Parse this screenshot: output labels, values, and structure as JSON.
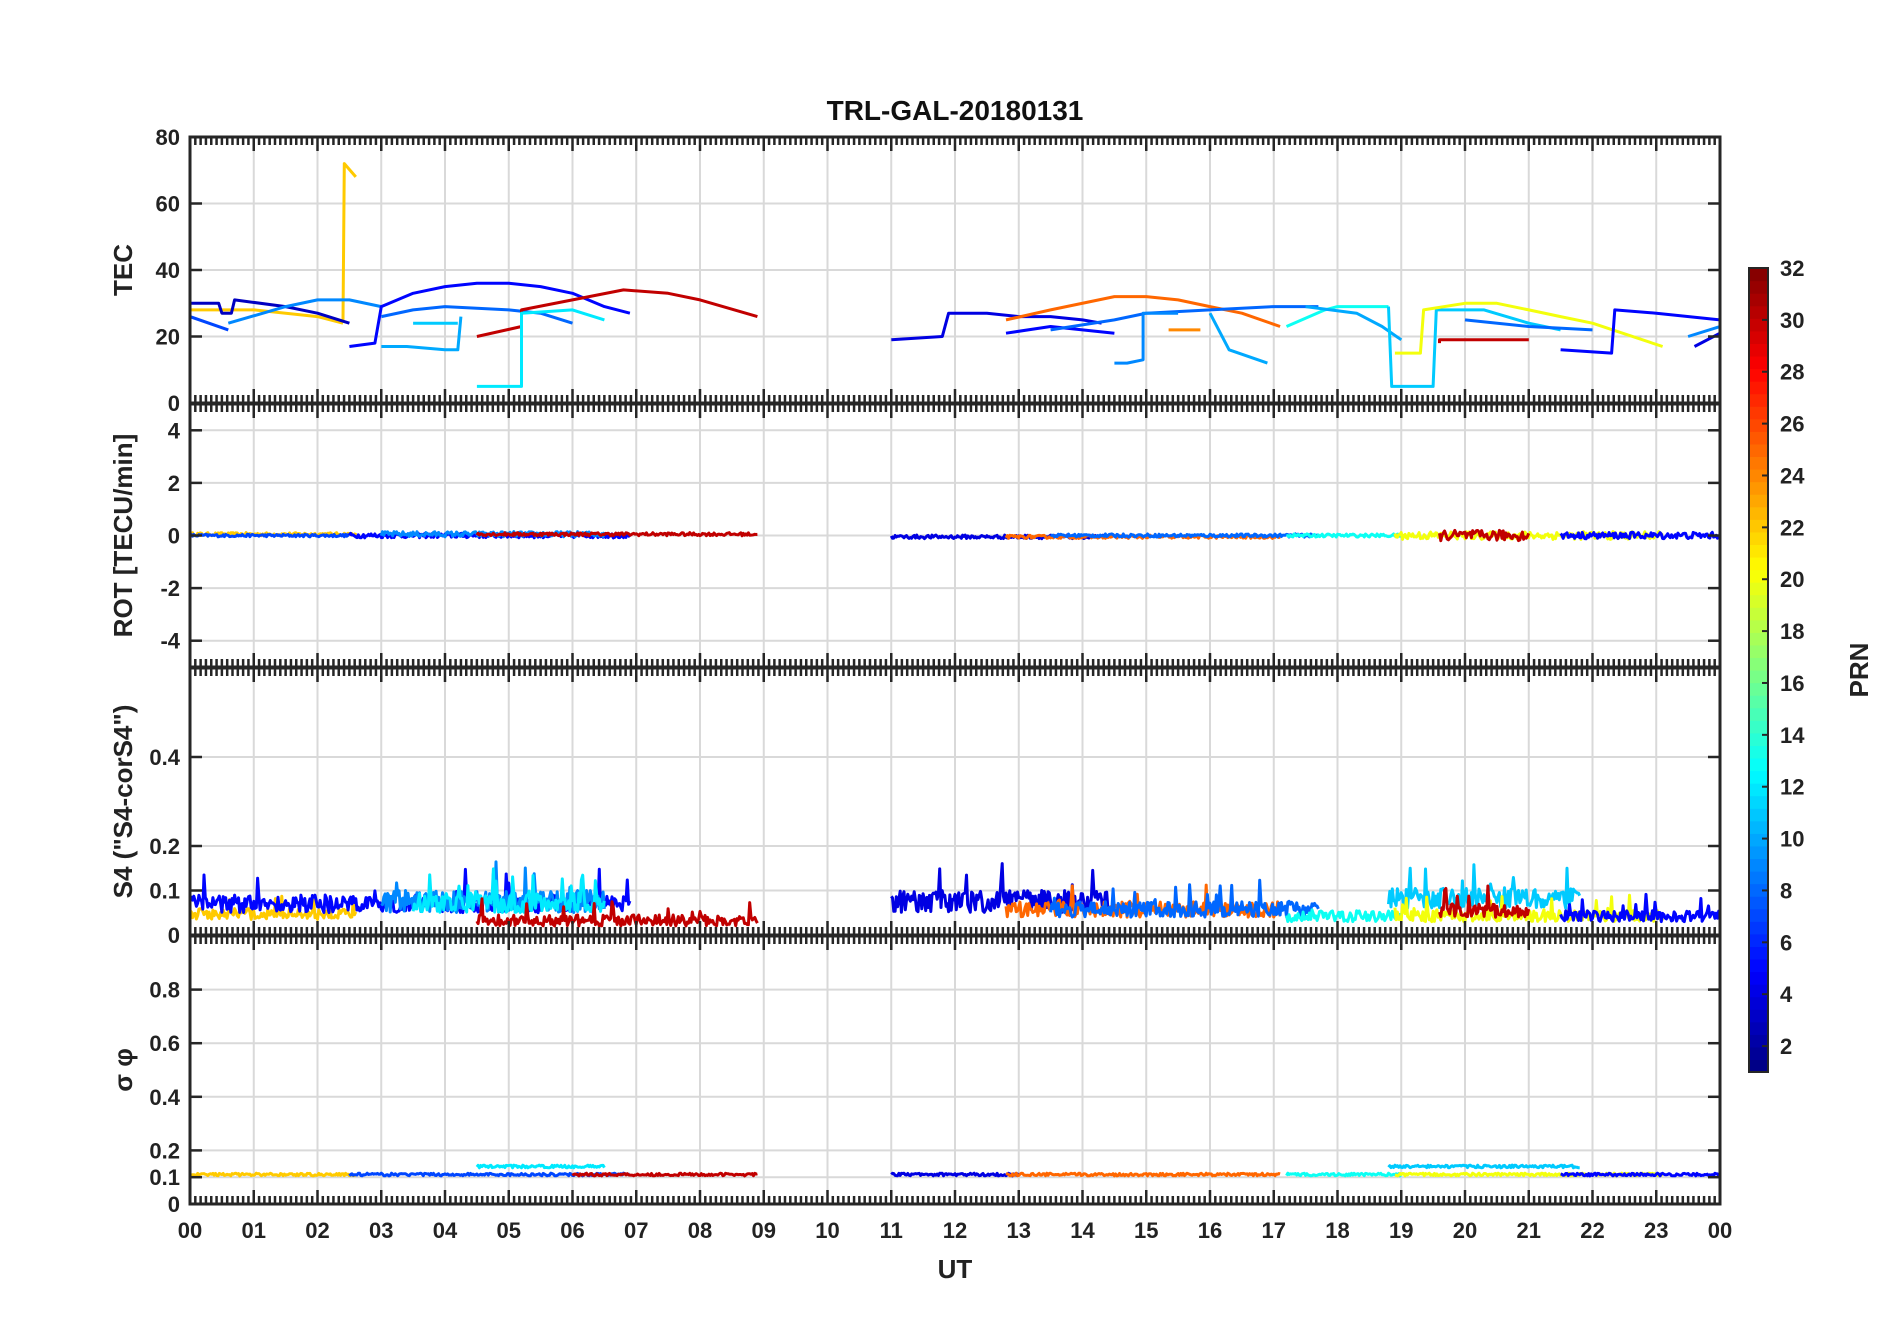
{
  "chart_data": [
    {
      "type": "line",
      "title": "TRL-GAL-20180131",
      "ylabel": "TEC",
      "ylim": [
        0,
        80
      ],
      "yticks": [
        0,
        20,
        40,
        60,
        80
      ],
      "ytick_labels": [
        "0",
        "20",
        "40",
        "60",
        "80"
      ],
      "series": [
        {
          "prn": 22,
          "points": [
            [
              0.0,
              28
            ],
            [
              1.0,
              28
            ],
            [
              2.0,
              26
            ],
            [
              2.4,
              24
            ]
          ]
        },
        {
          "prn": 22,
          "points": [
            [
              2.4,
              25
            ],
            [
              2.42,
              72
            ],
            [
              2.6,
              68
            ]
          ]
        },
        {
          "prn": 3,
          "points": [
            [
              0.0,
              30
            ],
            [
              0.45,
              30
            ],
            [
              0.5,
              27
            ],
            [
              0.65,
              27
            ],
            [
              0.7,
              31
            ],
            [
              1.5,
              29
            ],
            [
              2.0,
              27
            ],
            [
              2.5,
              24
            ]
          ]
        },
        {
          "prn": 7,
          "points": [
            [
              0.0,
              26
            ],
            [
              0.6,
              22
            ]
          ]
        },
        {
          "prn": 9,
          "points": [
            [
              0.6,
              24
            ],
            [
              1.5,
              29
            ],
            [
              2.0,
              31
            ],
            [
              2.5,
              31
            ],
            [
              3.0,
              29
            ]
          ]
        },
        {
          "prn": 5,
          "points": [
            [
              2.5,
              17
            ],
            [
              2.9,
              18
            ],
            [
              3.0,
              29
            ],
            [
              3.5,
              33
            ],
            [
              4.0,
              35
            ],
            [
              4.5,
              36
            ],
            [
              5.0,
              36
            ],
            [
              5.5,
              35
            ],
            [
              6.0,
              33
            ],
            [
              6.5,
              29
            ],
            [
              6.9,
              27
            ]
          ]
        },
        {
          "prn": 8,
          "points": [
            [
              3.0,
              26
            ],
            [
              3.5,
              28
            ],
            [
              4.0,
              29
            ],
            [
              5.0,
              28
            ],
            [
              5.5,
              27
            ],
            [
              6.0,
              24
            ]
          ]
        },
        {
          "prn": 10,
          "points": [
            [
              3.0,
              17
            ],
            [
              3.4,
              17
            ],
            [
              4.0,
              16
            ],
            [
              4.2,
              16
            ],
            [
              4.25,
              26
            ]
          ]
        },
        {
          "prn": 11,
          "points": [
            [
              3.5,
              24
            ],
            [
              4.2,
              24
            ]
          ]
        },
        {
          "prn": 30,
          "points": [
            [
              4.5,
              20
            ],
            [
              5.2,
              23
            ],
            [
              5.2,
              28
            ],
            [
              6.0,
              31
            ],
            [
              6.8,
              34
            ],
            [
              7.5,
              33
            ],
            [
              8.0,
              31
            ],
            [
              8.9,
              26
            ]
          ]
        },
        {
          "prn": 12,
          "points": [
            [
              4.5,
              5
            ],
            [
              5.2,
              5
            ],
            [
              5.2,
              27
            ],
            [
              6.0,
              28
            ],
            [
              6.5,
              25
            ]
          ]
        },
        {
          "prn": 4,
          "points": [
            [
              11.0,
              19
            ],
            [
              11.8,
              20
            ],
            [
              11.9,
              27
            ],
            [
              12.5,
              27
            ],
            [
              13.0,
              26
            ],
            [
              13.5,
              26
            ],
            [
              14.0,
              25
            ],
            [
              14.3,
              24
            ]
          ]
        },
        {
          "prn": 5,
          "points": [
            [
              12.8,
              21
            ],
            [
              13.5,
              23
            ],
            [
              14.0,
              22
            ],
            [
              14.5,
              21
            ]
          ]
        },
        {
          "prn": 25,
          "points": [
            [
              12.8,
              25
            ],
            [
              13.5,
              28
            ],
            [
              14.5,
              32
            ],
            [
              15.0,
              32
            ],
            [
              15.5,
              31
            ],
            [
              16.0,
              29
            ],
            [
              16.5,
              27
            ],
            [
              17.1,
              23
            ]
          ]
        },
        {
          "prn": 8,
          "points": [
            [
              13.5,
              22
            ],
            [
              14.5,
              25
            ],
            [
              15.0,
              27
            ],
            [
              16.0,
              28
            ],
            [
              17.0,
              29
            ],
            [
              17.7,
              29
            ]
          ]
        },
        {
          "prn": 9,
          "points": [
            [
              14.5,
              12
            ],
            [
              14.7,
              12
            ],
            [
              14.95,
              13
            ],
            [
              14.95,
              27
            ],
            [
              15.5,
              27
            ]
          ]
        },
        {
          "prn": 24,
          "points": [
            [
              15.35,
              22
            ],
            [
              15.85,
              22
            ]
          ]
        },
        {
          "prn": 10,
          "points": [
            [
              16.0,
              27
            ],
            [
              16.3,
              16
            ],
            [
              16.9,
              12
            ]
          ]
        },
        {
          "prn": 13,
          "points": [
            [
              17.2,
              23
            ],
            [
              17.8,
              28
            ],
            [
              18.0,
              29
            ],
            [
              18.8,
              29
            ]
          ]
        },
        {
          "prn": 10,
          "points": [
            [
              17.5,
              29
            ],
            [
              18.3,
              27
            ],
            [
              18.7,
              23
            ],
            [
              19.0,
              19
            ]
          ]
        },
        {
          "prn": 11,
          "points": [
            [
              18.8,
              29
            ],
            [
              18.85,
              5
            ],
            [
              19.5,
              5
            ],
            [
              19.55,
              28
            ],
            [
              20.3,
              28
            ],
            [
              21.0,
              24
            ],
            [
              21.5,
              22
            ]
          ]
        },
        {
          "prn": 20,
          "points": [
            [
              18.9,
              15
            ],
            [
              19.3,
              15
            ],
            [
              19.35,
              28
            ],
            [
              20.0,
              30
            ],
            [
              20.5,
              30
            ],
            [
              21.0,
              28
            ],
            [
              21.5,
              26
            ],
            [
              22.0,
              24
            ],
            [
              23.1,
              17
            ]
          ]
        },
        {
          "prn": 30,
          "points": [
            [
              19.6,
              18
            ],
            [
              19.6,
              19
            ],
            [
              20.0,
              19
            ],
            [
              21.0,
              19
            ]
          ]
        },
        {
          "prn": 5,
          "points": [
            [
              21.5,
              16
            ],
            [
              22.3,
              15
            ],
            [
              22.35,
              28
            ],
            [
              23.0,
              27
            ],
            [
              24.0,
              25
            ]
          ]
        },
        {
          "prn": 8,
          "points": [
            [
              20.0,
              25
            ],
            [
              21.0,
              23
            ],
            [
              22.0,
              22
            ]
          ]
        },
        {
          "prn": 9,
          "points": [
            [
              23.5,
              20
            ],
            [
              24.0,
              23
            ]
          ]
        },
        {
          "prn": 4,
          "points": [
            [
              23.6,
              17
            ],
            [
              24.0,
              21
            ]
          ]
        }
      ]
    },
    {
      "type": "line",
      "ylabel": "ROT [TECU/min]",
      "ylim": [
        -5,
        5
      ],
      "yticks": [
        -4,
        -2,
        0,
        2,
        4
      ],
      "ytick_labels": [
        "-4",
        "-2",
        "0",
        "2",
        "4"
      ],
      "series": [
        {
          "prn": 22,
          "range": [
            0.0,
            2.6
          ],
          "level": 0.05,
          "amp": 0.12
        },
        {
          "prn": 7,
          "range": [
            0.0,
            2.5
          ],
          "level": 0.0,
          "amp": 0.1
        },
        {
          "prn": 5,
          "range": [
            2.5,
            6.9
          ],
          "level": 0.0,
          "amp": 0.18
        },
        {
          "prn": 9,
          "range": [
            3.0,
            6.5
          ],
          "level": 0.05,
          "amp": 0.2
        },
        {
          "prn": 30,
          "range": [
            4.5,
            8.9
          ],
          "level": 0.05,
          "amp": 0.12
        },
        {
          "prn": 4,
          "range": [
            11.0,
            14.4
          ],
          "level": -0.05,
          "amp": 0.14
        },
        {
          "prn": 25,
          "range": [
            12.8,
            17.1
          ],
          "level": -0.05,
          "amp": 0.12
        },
        {
          "prn": 8,
          "range": [
            13.5,
            17.7
          ],
          "level": 0.0,
          "amp": 0.12
        },
        {
          "prn": 13,
          "range": [
            17.2,
            19.0
          ],
          "level": 0.0,
          "amp": 0.12
        },
        {
          "prn": 20,
          "range": [
            18.9,
            23.1
          ],
          "level": 0.0,
          "amp": 0.3
        },
        {
          "prn": 30,
          "range": [
            19.6,
            21.0
          ],
          "level": 0.0,
          "amp": 0.4
        },
        {
          "prn": 5,
          "range": [
            21.5,
            24.0
          ],
          "level": 0.0,
          "amp": 0.25
        }
      ]
    },
    {
      "type": "line",
      "ylabel": "S4 (\"S4-corS4\")",
      "ylim": [
        0,
        0.6
      ],
      "yticks": [
        0,
        0.1,
        0.2,
        0.4
      ],
      "ytick_labels": [
        "0",
        "0.1",
        "0.2",
        "0.4"
      ],
      "series": [
        {
          "prn": 22,
          "range": [
            0.0,
            2.6
          ],
          "level": 0.035,
          "amp": 0.05
        },
        {
          "prn": 5,
          "range": [
            0.0,
            6.9
          ],
          "level": 0.05,
          "amp": 0.08
        },
        {
          "prn": 9,
          "range": [
            3.0,
            6.5
          ],
          "level": 0.05,
          "amp": 0.1
        },
        {
          "prn": 12,
          "range": [
            3.5,
            6.5
          ],
          "level": 0.05,
          "amp": 0.09
        },
        {
          "prn": 30,
          "range": [
            4.5,
            8.9
          ],
          "level": 0.02,
          "amp": 0.05
        },
        {
          "prn": 4,
          "range": [
            11.0,
            14.4
          ],
          "level": 0.05,
          "amp": 0.1
        },
        {
          "prn": 25,
          "range": [
            12.8,
            17.1
          ],
          "level": 0.04,
          "amp": 0.07
        },
        {
          "prn": 8,
          "range": [
            13.5,
            17.7
          ],
          "level": 0.04,
          "amp": 0.07
        },
        {
          "prn": 13,
          "range": [
            17.2,
            19.0
          ],
          "level": 0.03,
          "amp": 0.05
        },
        {
          "prn": 11,
          "range": [
            18.8,
            21.8
          ],
          "level": 0.06,
          "amp": 0.09
        },
        {
          "prn": 20,
          "range": [
            18.9,
            23.1
          ],
          "level": 0.03,
          "amp": 0.05
        },
        {
          "prn": 30,
          "range": [
            19.6,
            21.0
          ],
          "level": 0.04,
          "amp": 0.06
        },
        {
          "prn": 5,
          "range": [
            21.5,
            24.0
          ],
          "level": 0.03,
          "amp": 0.05
        }
      ]
    },
    {
      "type": "line",
      "ylabel": "σ φ",
      "ylim": [
        0,
        1
      ],
      "yticks": [
        0,
        0.1,
        0.2,
        0.4,
        0.6,
        0.8
      ],
      "ytick_labels": [
        "0",
        "0.1",
        "0.2",
        "0.4",
        "0.6",
        "0.8"
      ],
      "xlabel": "UT",
      "xlim": [
        0,
        24
      ],
      "xtick_labels": [
        "00",
        "01",
        "02",
        "03",
        "04",
        "05",
        "06",
        "07",
        "08",
        "09",
        "10",
        "11",
        "12",
        "13",
        "14",
        "15",
        "16",
        "17",
        "18",
        "19",
        "20",
        "21",
        "22",
        "23",
        "00"
      ],
      "series": [
        {
          "prn": 22,
          "range": [
            0.0,
            2.6
          ],
          "level": 0.11,
          "amp": 0.01
        },
        {
          "prn": 7,
          "range": [
            2.5,
            6.9
          ],
          "level": 0.11,
          "amp": 0.01
        },
        {
          "prn": 12,
          "range": [
            4.5,
            6.5
          ],
          "level": 0.14,
          "amp": 0.01
        },
        {
          "prn": 30,
          "range": [
            6.0,
            8.9
          ],
          "level": 0.11,
          "amp": 0.01
        },
        {
          "prn": 4,
          "range": [
            11.0,
            13.0
          ],
          "level": 0.11,
          "amp": 0.01
        },
        {
          "prn": 25,
          "range": [
            12.8,
            17.1
          ],
          "level": 0.11,
          "amp": 0.01
        },
        {
          "prn": 13,
          "range": [
            17.2,
            19.0
          ],
          "level": 0.11,
          "amp": 0.01
        },
        {
          "prn": 11,
          "range": [
            18.8,
            21.8
          ],
          "level": 0.14,
          "amp": 0.01
        },
        {
          "prn": 20,
          "range": [
            18.9,
            23.1
          ],
          "level": 0.11,
          "amp": 0.01
        },
        {
          "prn": 5,
          "range": [
            21.5,
            24.0
          ],
          "level": 0.11,
          "amp": 0.01
        }
      ]
    }
  ],
  "colorbar": {
    "label": "PRN",
    "range": [
      1,
      32
    ],
    "ticks": [
      2,
      4,
      6,
      8,
      10,
      12,
      14,
      16,
      18,
      20,
      22,
      24,
      26,
      28,
      30,
      32
    ],
    "tick_labels": [
      "2",
      "4",
      "6",
      "8",
      "10",
      "12",
      "14",
      "16",
      "18",
      "20",
      "22",
      "24",
      "26",
      "28",
      "30",
      "32"
    ]
  }
}
